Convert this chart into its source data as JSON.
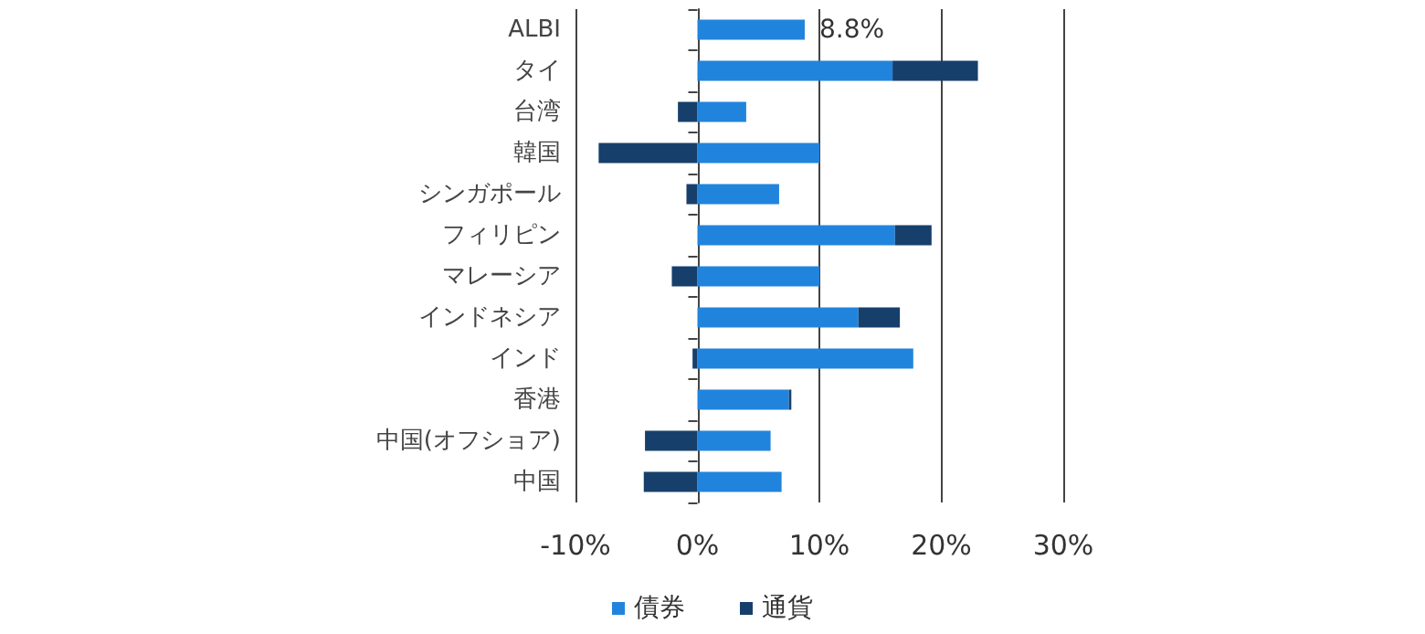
{
  "chart_data": {
    "type": "bar",
    "orientation": "horizontal",
    "stacked": true,
    "categories": [
      "ALBI",
      "タイ",
      "台湾",
      "韓国",
      "シンガポール",
      "フィリピン",
      "マレーシア",
      "インドネシア",
      "インド",
      "香港",
      "中国(オフショア)",
      "中国"
    ],
    "series": [
      {
        "name": "債券",
        "color": "#2184dc",
        "values": [
          8.8,
          16.0,
          4.0,
          10.0,
          6.7,
          16.2,
          10.0,
          13.2,
          17.7,
          7.5,
          6.0,
          6.9
        ],
        "value_labels": [
          "8.8%",
          null,
          null,
          null,
          null,
          null,
          null,
          null,
          null,
          null,
          null,
          null
        ]
      },
      {
        "name": "通貨",
        "color": "#173f6b",
        "values": [
          null,
          7.0,
          -1.6,
          -8.1,
          -0.9,
          3.0,
          -2.1,
          3.4,
          -0.4,
          0.2,
          -4.3,
          -4.4
        ]
      }
    ],
    "xlim": [
      -10,
      30
    ],
    "xticks": [
      {
        "value": -10,
        "label": "-10%"
      },
      {
        "value": 0,
        "label": "0%"
      },
      {
        "value": 10,
        "label": "10%"
      },
      {
        "value": 20,
        "label": "20%"
      },
      {
        "value": 30,
        "label": "30%"
      }
    ],
    "grid": "x",
    "legend": "bottom"
  }
}
